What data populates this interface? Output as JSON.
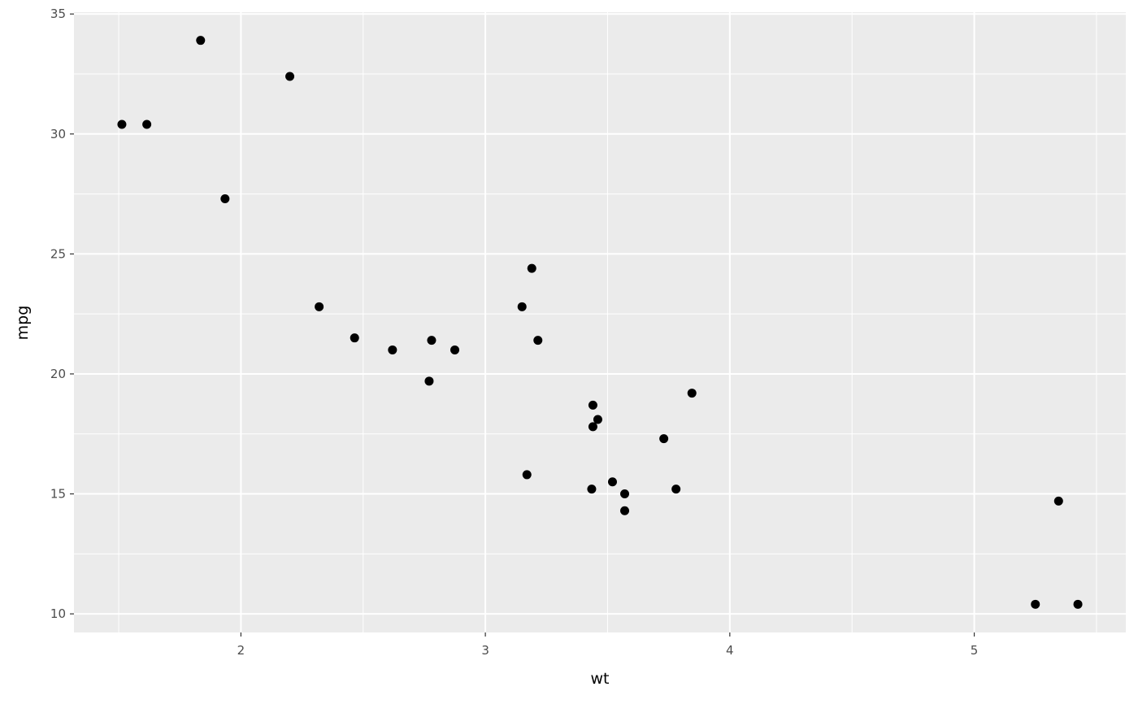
{
  "chart_data": {
    "type": "scatter",
    "title": "",
    "xlabel": "wt",
    "ylabel": "mpg",
    "xlim": [
      1.317,
      5.62
    ],
    "ylim": [
      9.225,
      35.075
    ],
    "x_ticks": [
      2,
      3,
      4,
      5
    ],
    "y_ticks": [
      10,
      15,
      20,
      25,
      30,
      35
    ],
    "x_tick_labels": [
      "2",
      "3",
      "4",
      "5"
    ],
    "y_tick_labels": [
      "10",
      "15",
      "20",
      "25",
      "30",
      "35"
    ],
    "grid": true,
    "legend": "none",
    "colors": {
      "panel": "#ebebeb",
      "grid": "#ffffff",
      "point": "#000000",
      "tick_text": "#4d4d4d"
    },
    "points": [
      {
        "x": 1.513,
        "y": 30.4
      },
      {
        "x": 1.615,
        "y": 30.4
      },
      {
        "x": 1.835,
        "y": 33.9
      },
      {
        "x": 2.2,
        "y": 32.4
      },
      {
        "x": 1.935,
        "y": 27.3
      },
      {
        "x": 2.32,
        "y": 22.8
      },
      {
        "x": 2.465,
        "y": 21.5
      },
      {
        "x": 2.62,
        "y": 21.0
      },
      {
        "x": 2.78,
        "y": 21.4
      },
      {
        "x": 2.875,
        "y": 21.0
      },
      {
        "x": 2.77,
        "y": 19.7
      },
      {
        "x": 3.15,
        "y": 22.8
      },
      {
        "x": 3.19,
        "y": 24.4
      },
      {
        "x": 3.215,
        "y": 21.4
      },
      {
        "x": 3.17,
        "y": 15.8
      },
      {
        "x": 3.44,
        "y": 18.7
      },
      {
        "x": 3.46,
        "y": 18.1
      },
      {
        "x": 3.44,
        "y": 17.8
      },
      {
        "x": 3.435,
        "y": 15.2
      },
      {
        "x": 3.52,
        "y": 15.5
      },
      {
        "x": 3.57,
        "y": 15.0
      },
      {
        "x": 3.57,
        "y": 14.3
      },
      {
        "x": 3.73,
        "y": 17.3
      },
      {
        "x": 3.78,
        "y": 15.2
      },
      {
        "x": 3.845,
        "y": 19.2
      },
      {
        "x": 5.25,
        "y": 10.4
      },
      {
        "x": 5.345,
        "y": 14.7
      },
      {
        "x": 5.424,
        "y": 10.4
      }
    ]
  }
}
